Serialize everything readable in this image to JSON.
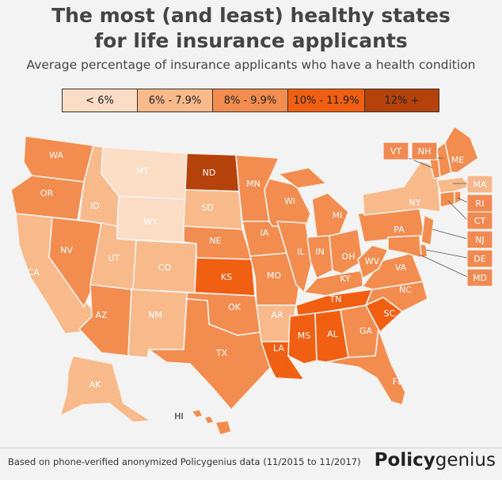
{
  "title_line1": "The most (and least) healthy states",
  "title_line2": "for life insurance applicants",
  "subtitle": "Average percentage of insurance applicants who have a health condition",
  "legend": [
    {
      "label": "< 6%",
      "color": "#fbdcc5",
      "width": 95
    },
    {
      "label": "6% - 7.9%",
      "color": "#f8b98b",
      "width": 95
    },
    {
      "label": "8% - 9.9%",
      "color": "#f28c4f",
      "width": 95
    },
    {
      "label": "10% - 11.9%",
      "color": "#f05f12",
      "width": 97
    },
    {
      "label": "12% +",
      "color": "#b5410b",
      "width": 93
    }
  ],
  "states": [
    "WA",
    "OR",
    "CA",
    "NV",
    "ID",
    "MT",
    "WY",
    "UT",
    "AZ",
    "CO",
    "NM",
    "ND",
    "SD",
    "NE",
    "KS",
    "OK",
    "TX",
    "MN",
    "IA",
    "MO",
    "AR",
    "LA",
    "WI",
    "IL",
    "MI",
    "IN",
    "KY",
    "TN",
    "MS",
    "AL",
    "GA",
    "FL",
    "SC",
    "NC",
    "VA",
    "WV",
    "OH",
    "PA",
    "NY",
    "ME",
    "VT",
    "NH",
    "MA",
    "RI",
    "CT",
    "NJ",
    "DE",
    "MD",
    "AK",
    "HI"
  ],
  "source": "Based on phone-verified anonymized Policygenius data (11/2015 to 11/2017)",
  "brand_bold": "Policy",
  "brand_light": "genius"
}
